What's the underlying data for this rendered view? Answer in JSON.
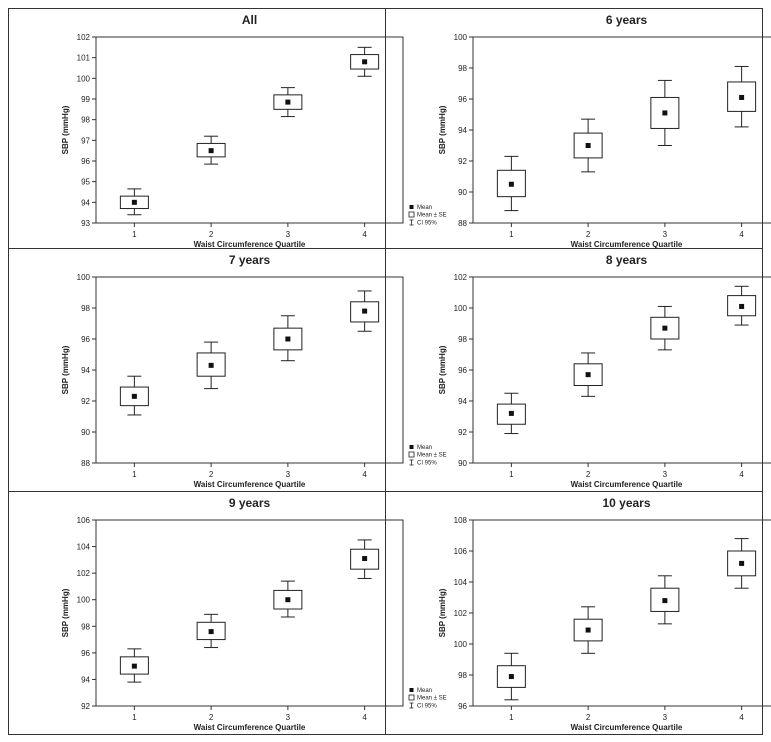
{
  "chart_data": [
    {
      "type": "box",
      "title": "All",
      "xlabel": "Waist Circumference Quartile",
      "ylabel": "SBP (mmHg)",
      "ylim": [
        93,
        102
      ],
      "yticks": [
        93,
        94,
        95,
        96,
        97,
        98,
        99,
        100,
        101,
        102
      ],
      "categories": [
        "1",
        "2",
        "3",
        "4"
      ],
      "mean": [
        94.0,
        96.5,
        98.85,
        100.8
      ],
      "se_low": [
        93.7,
        96.2,
        98.5,
        100.45
      ],
      "se_high": [
        94.3,
        96.85,
        99.2,
        101.15
      ],
      "ci_low": [
        93.4,
        95.85,
        98.15,
        100.1
      ],
      "ci_high": [
        94.65,
        97.2,
        99.55,
        101.5
      ],
      "legend": [
        "Mean",
        "Mean ± SE",
        "CI 95%"
      ]
    },
    {
      "type": "box",
      "title": "6 years",
      "xlabel": "Waist Circumference Quartile",
      "ylabel": "SBP (mmHg)",
      "ylim": [
        88,
        100
      ],
      "yticks": [
        88,
        90,
        92,
        94,
        96,
        98,
        100
      ],
      "categories": [
        "1",
        "2",
        "3",
        "4"
      ],
      "mean": [
        90.5,
        93.0,
        95.1,
        96.1
      ],
      "se_low": [
        89.7,
        92.2,
        94.1,
        95.2
      ],
      "se_high": [
        91.4,
        93.8,
        96.1,
        97.1
      ],
      "ci_low": [
        88.8,
        91.3,
        93.0,
        94.2
      ],
      "ci_high": [
        92.3,
        94.7,
        97.2,
        98.1
      ],
      "legend": [
        "Mean",
        "Mean ± SE",
        "CI 95%"
      ]
    },
    {
      "type": "box",
      "title": "7 years",
      "xlabel": "Waist Circumference Quartile",
      "ylabel": "SBP (mmHg)",
      "ylim": [
        88,
        100
      ],
      "yticks": [
        88,
        90,
        92,
        94,
        96,
        98,
        100
      ],
      "categories": [
        "1",
        "2",
        "3",
        "4"
      ],
      "mean": [
        92.3,
        94.3,
        96.0,
        97.8
      ],
      "se_low": [
        91.7,
        93.6,
        95.3,
        97.1
      ],
      "se_high": [
        92.9,
        95.1,
        96.7,
        98.4
      ],
      "ci_low": [
        91.1,
        92.8,
        94.6,
        96.5
      ],
      "ci_high": [
        93.6,
        95.8,
        97.5,
        99.1
      ],
      "legend": [
        "Mean",
        "Mean ± SE",
        "CI 95%"
      ]
    },
    {
      "type": "box",
      "title": "8 years",
      "xlabel": "Waist Circumference Quartile",
      "ylabel": "SBP (mmHg)",
      "ylim": [
        90,
        102
      ],
      "yticks": [
        90,
        92,
        94,
        96,
        98,
        100,
        102
      ],
      "categories": [
        "1",
        "2",
        "3",
        "4"
      ],
      "mean": [
        93.2,
        95.7,
        98.7,
        100.1
      ],
      "se_low": [
        92.5,
        95.0,
        98.0,
        99.5
      ],
      "se_high": [
        93.8,
        96.4,
        99.4,
        100.8
      ],
      "ci_low": [
        91.9,
        94.3,
        97.3,
        98.9
      ],
      "ci_high": [
        94.5,
        97.1,
        100.1,
        101.4
      ],
      "legend": [
        "Mean",
        "Mean ± SE",
        "CI 95%"
      ]
    },
    {
      "type": "box",
      "title": "9 years",
      "xlabel": "Waist Circumference Quartile",
      "ylabel": "SBP (mmHg)",
      "ylim": [
        92,
        106
      ],
      "yticks": [
        92,
        94,
        96,
        98,
        100,
        102,
        104,
        106
      ],
      "categories": [
        "1",
        "2",
        "3",
        "4"
      ],
      "mean": [
        95.0,
        97.6,
        100.0,
        103.1
      ],
      "se_low": [
        94.4,
        97.0,
        99.3,
        102.3
      ],
      "se_high": [
        95.7,
        98.3,
        100.7,
        103.8
      ],
      "ci_low": [
        93.8,
        96.4,
        98.7,
        101.6
      ],
      "ci_high": [
        96.3,
        98.9,
        101.4,
        104.5
      ],
      "legend": [
        "Mean",
        "Mean ± SE",
        "CI 95%"
      ]
    },
    {
      "type": "box",
      "title": "10 years",
      "xlabel": "Waist Circumference Quartile",
      "ylabel": "SBP (mmHg)",
      "ylim": [
        96,
        108
      ],
      "yticks": [
        96,
        98,
        100,
        102,
        104,
        106,
        108
      ],
      "categories": [
        "1",
        "2",
        "3",
        "4"
      ],
      "mean": [
        97.9,
        100.9,
        102.8,
        105.2
      ],
      "se_low": [
        97.2,
        100.2,
        102.1,
        104.4
      ],
      "se_high": [
        98.6,
        101.6,
        103.6,
        106.0
      ],
      "ci_low": [
        96.4,
        99.4,
        101.3,
        103.6
      ],
      "ci_high": [
        99.4,
        102.4,
        104.4,
        106.8
      ],
      "legend": [
        "Mean",
        "Mean ± SE",
        "CI 95%"
      ]
    }
  ]
}
